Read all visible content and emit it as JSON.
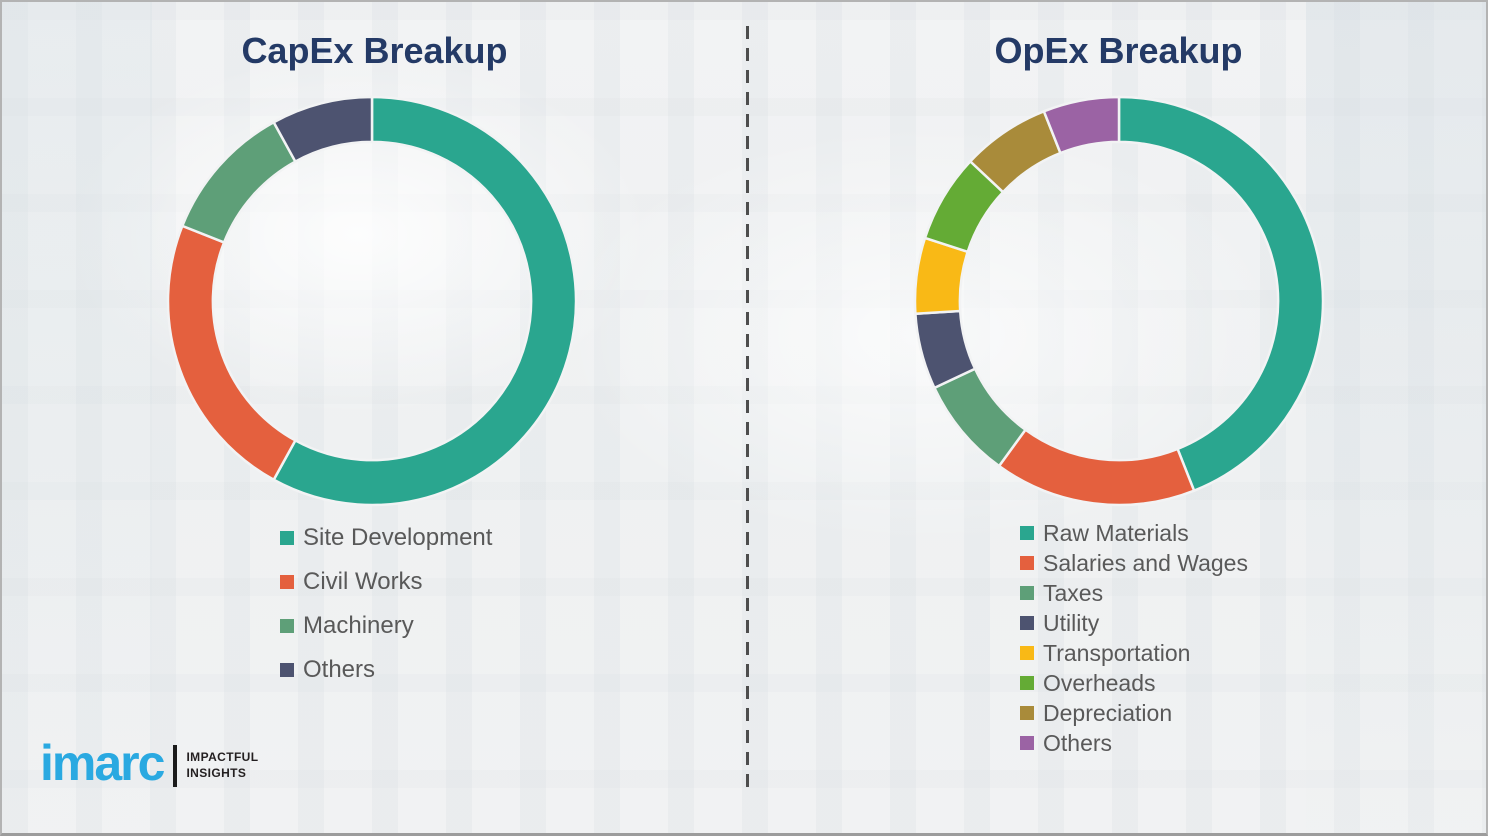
{
  "page": {
    "background": "#eff1f2",
    "border_color": "#b3b3b3",
    "divider_color": "#4d4d4d",
    "title_color": "#243a66",
    "legend_text_color": "#595959"
  },
  "chart_data": [
    {
      "type": "pie",
      "subtype": "donut",
      "title": "CapEx Breakup",
      "categories": [
        "Site Development",
        "Civil Works",
        "Machinery",
        "Others"
      ],
      "values": [
        58,
        23,
        11,
        8
      ],
      "unit": "percent",
      "colors": [
        "#2aa68f",
        "#e4603e",
        "#5e9f78",
        "#4d5370"
      ],
      "start_angle_deg": 0,
      "direction": "clockwise",
      "inner_radius_ratio": 0.78,
      "legend_position": "below-left"
    },
    {
      "type": "pie",
      "subtype": "donut",
      "title": "OpEx Breakup",
      "categories": [
        "Raw Materials",
        "Salaries and Wages",
        "Taxes",
        "Utility",
        "Transportation",
        "Overheads",
        "Depreciation",
        "Others"
      ],
      "values": [
        44,
        16,
        8,
        6,
        6,
        7,
        7,
        6
      ],
      "unit": "percent",
      "colors": [
        "#2aa68f",
        "#e4603e",
        "#5e9f78",
        "#4d5370",
        "#f9b916",
        "#64ab35",
        "#a98b3a",
        "#9b63a4"
      ],
      "start_angle_deg": 0,
      "direction": "clockwise",
      "inner_radius_ratio": 0.78,
      "legend_position": "below-left"
    }
  ],
  "logo": {
    "brand": "imarc",
    "tagline_line1": "IMPACTFUL",
    "tagline_line2": "INSIGHTS",
    "brand_color": "#2aa9e1"
  }
}
